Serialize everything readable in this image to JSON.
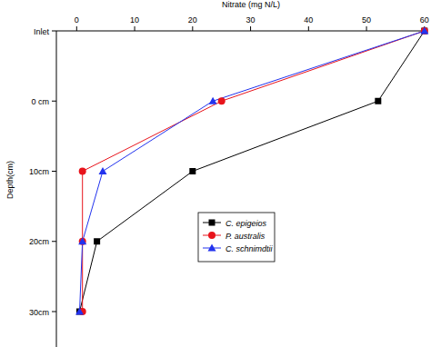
{
  "chart_data": {
    "type": "line",
    "orientation": "horizontal",
    "x_label": "Nitrate (mg N/L)",
    "y_label": "Depth(cm)",
    "categories": [
      "Inlet",
      "0 cm",
      "10cm",
      "20cm",
      "30cm"
    ],
    "series": [
      {
        "name": "C. epigeios",
        "color": "#000000",
        "marker": "square",
        "values": [
          60,
          52,
          20,
          3.5,
          0.5
        ]
      },
      {
        "name": "P. australis",
        "color": "#e8141c",
        "marker": "circle",
        "values": [
          60,
          25,
          1,
          1,
          1
        ]
      },
      {
        "name": "C. schnimdtii",
        "color": "#2233ee",
        "marker": "triangle",
        "values": [
          60,
          23.5,
          4.5,
          1,
          0.5
        ]
      }
    ],
    "xlim": [
      -3.5,
      60.5
    ],
    "xticks": [
      0,
      10,
      20,
      30,
      40,
      50,
      60
    ],
    "legend": "center"
  }
}
